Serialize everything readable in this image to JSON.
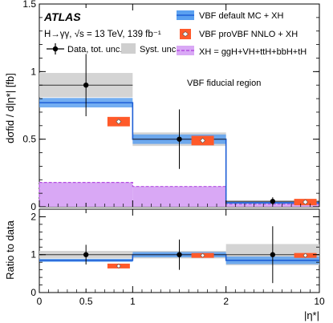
{
  "chart_data": {
    "type": "step-histogram",
    "experiment": "ATLAS",
    "process_line": "H→γγ, √s = 13 TeV, 139 fb⁻¹",
    "region": "VBF fiducial region",
    "xlabel": "|η*|",
    "ylabel_top": "dσfid / d|η*|  [fb]",
    "ylabel_bottom": "Ratio to data",
    "bins": [
      {
        "lo": 0,
        "hi": 1,
        "label_lo": "0",
        "label_hi": "1"
      },
      {
        "lo": 1,
        "hi": 2,
        "label_lo": "1",
        "label_hi": "2"
      },
      {
        "lo": 2,
        "hi": 3,
        "label_lo": "2",
        "label_hi": "10"
      }
    ],
    "x_tick_labels": [
      "0",
      "0.5",
      "1",
      "2",
      "10"
    ],
    "top_ylim": [
      0,
      1.5
    ],
    "top_yticks": [
      "0",
      "0.5",
      "1",
      "1.5"
    ],
    "bottom_ylim": [
      0,
      2.2
    ],
    "bottom_yticks": [
      "0",
      "1",
      "2"
    ],
    "legend": {
      "data": "Data, tot. unc.",
      "syst": "Syst. unc.",
      "vbf_default": "VBF default MC + XH",
      "provbf": "VBF proVBF NNLO + XH",
      "xh": "XH = ggH+VH+ttH+bbH+tH"
    },
    "series": [
      {
        "name": "Data, tot. unc.",
        "values": [
          0.9,
          0.5,
          0.04
        ],
        "err": [
          0.23,
          0.22,
          0.03
        ],
        "syst": [
          0.09,
          0.05,
          0.008
        ]
      },
      {
        "name": "VBF default MC + XH",
        "values": [
          0.77,
          0.5,
          0.03
        ],
        "band": [
          0.035,
          0.035,
          0.004
        ]
      },
      {
        "name": "VBF proVBF NNLO + XH",
        "values": [
          0.63,
          0.49,
          0.035
        ],
        "band": [
          0.035,
          0.035,
          0.003
        ]
      },
      {
        "name": "XH = ggH+VH+ttH+bbH+tH",
        "values": [
          0.18,
          0.15,
          0.02
        ]
      }
    ],
    "ratio": {
      "data": {
        "values": [
          1.0,
          1.0,
          1.0
        ],
        "err": [
          0.26,
          0.4,
          0.75
        ],
        "syst": [
          0.1,
          0.1,
          0.28
        ]
      },
      "vbf_default": {
        "values": [
          0.85,
          1.0,
          0.85
        ],
        "band": [
          0.04,
          0.07,
          0.1
        ]
      },
      "provbf": {
        "values": [
          0.7,
          0.98,
          0.98
        ],
        "band": [
          0.04,
          0.06,
          0.1
        ]
      }
    },
    "colors": {
      "data": "#000000",
      "syst": "#cfcfcf",
      "vbf_line": "#1e5fd6",
      "vbf_band": "#5aa0f0",
      "provbf": "#ff5a2a",
      "xh_line": "#b44fe0",
      "xh_fill": "#d9a8f5"
    }
  }
}
